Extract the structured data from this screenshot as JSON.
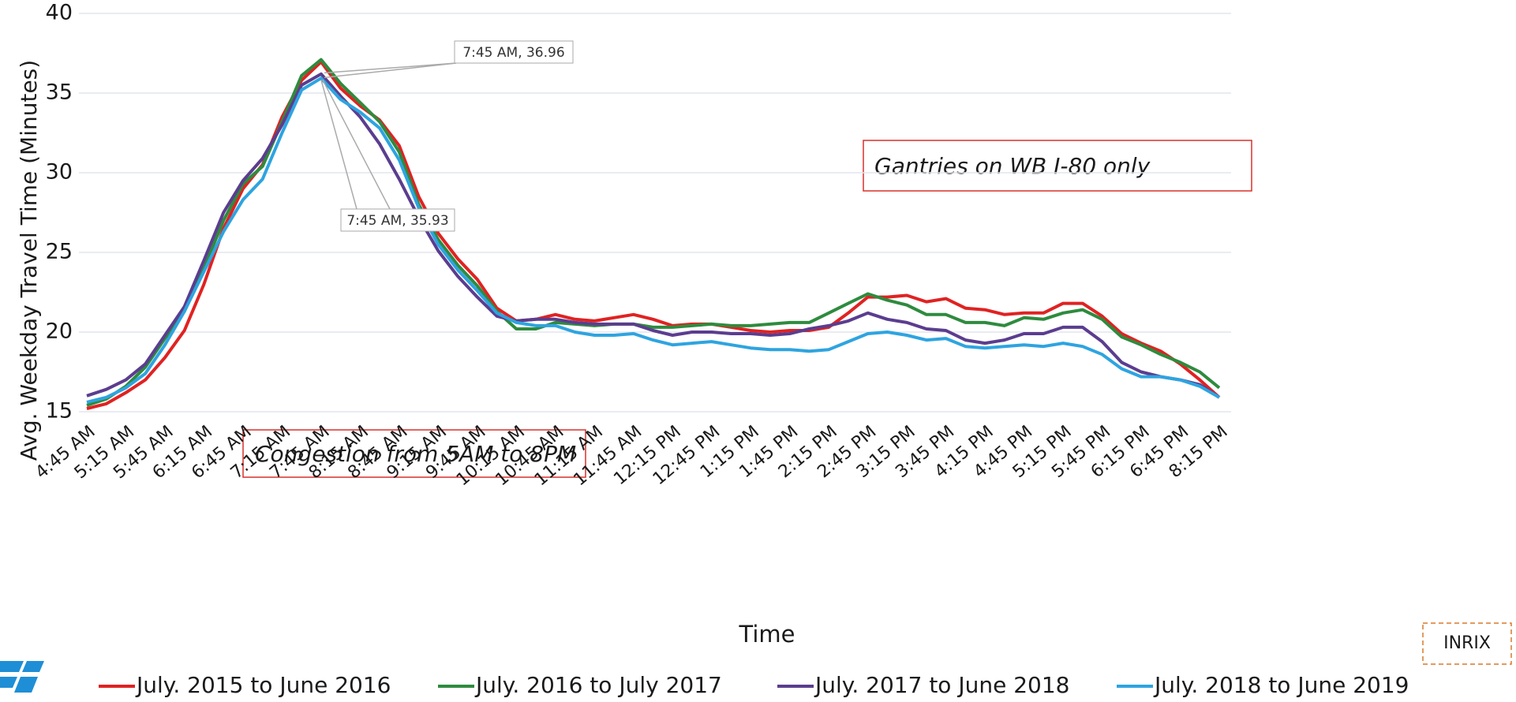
{
  "chart_data": {
    "type": "line",
    "y_label": "Avg. Weekday Travel Time (Minutes)",
    "x_label": "Time",
    "ylim": [
      15,
      40
    ],
    "yticks": [
      15,
      20,
      25,
      30,
      35,
      40
    ],
    "grid": true,
    "categories": [
      "4:45 AM",
      null,
      "5:15 AM",
      null,
      "5:45 AM",
      null,
      "6:15 AM",
      null,
      "6:45 AM",
      null,
      "7:15 AM",
      null,
      "7:45 AM",
      null,
      "8:15 AM",
      null,
      "8:45 AM",
      null,
      "9:15 AM",
      null,
      "9:45 AM",
      null,
      "10:15 AM",
      null,
      "10:45 AM",
      null,
      "11:15 AM",
      null,
      "11:45 AM",
      null,
      "12:15 PM",
      null,
      "12:45 PM",
      null,
      "1:15 PM",
      null,
      "1:45 PM",
      null,
      "2:15 PM",
      null,
      "2:45 PM",
      null,
      "3:15 PM",
      null,
      "3:45 PM",
      null,
      "4:15 PM",
      null,
      "4:45 PM",
      null,
      "5:15 PM",
      null,
      "5:45 PM",
      null,
      "6:15 PM",
      null,
      "6:45 PM",
      null,
      "8:15 PM"
    ],
    "series": [
      {
        "name": "July. 2015 to June 2016",
        "color": "#e02222",
        "values": [
          15.2,
          15.5,
          16.2,
          17.0,
          18.4,
          20.1,
          23.0,
          26.5,
          29.0,
          30.5,
          33.5,
          35.8,
          36.96,
          35.3,
          34.2,
          33.3,
          31.7,
          28.5,
          26.2,
          24.6,
          23.3,
          21.5,
          20.7,
          20.8,
          21.1,
          20.8,
          20.7,
          20.9,
          21.1,
          20.8,
          20.4,
          20.5,
          20.5,
          20.3,
          20.1,
          20.0,
          20.1,
          20.1,
          20.3,
          21.2,
          22.2,
          22.2,
          22.3,
          21.9,
          22.1,
          21.5,
          21.4,
          21.1,
          21.2,
          21.2,
          21.8,
          21.8,
          21.0,
          19.9,
          19.3,
          18.8,
          18.0,
          17.0,
          15.9
        ]
      },
      {
        "name": "July. 2016 to July 2017",
        "color": "#2e8b3e",
        "values": [
          15.4,
          15.8,
          16.6,
          17.8,
          19.6,
          21.3,
          24.0,
          27.0,
          29.3,
          30.4,
          33.2,
          36.1,
          37.1,
          35.6,
          34.4,
          33.2,
          31.3,
          28.0,
          25.8,
          24.2,
          22.9,
          21.3,
          20.2,
          20.2,
          20.6,
          20.5,
          20.4,
          20.5,
          20.5,
          20.3,
          20.3,
          20.4,
          20.5,
          20.4,
          20.4,
          20.5,
          20.6,
          20.6,
          21.2,
          21.8,
          22.4,
          22.0,
          21.7,
          21.1,
          21.1,
          20.6,
          20.6,
          20.4,
          20.9,
          20.8,
          21.2,
          21.4,
          20.8,
          19.7,
          19.2,
          18.6,
          18.1,
          17.5,
          16.5
        ]
      },
      {
        "name": "July. 2017 to June 2018",
        "color": "#5b3d8f",
        "values": [
          16.0,
          16.4,
          17.0,
          18.0,
          19.8,
          21.6,
          24.5,
          27.5,
          29.5,
          30.9,
          33.0,
          35.5,
          36.2,
          34.8,
          33.5,
          31.8,
          29.6,
          27.2,
          25.1,
          23.5,
          22.2,
          21.0,
          20.7,
          20.8,
          20.8,
          20.6,
          20.5,
          20.5,
          20.5,
          20.1,
          19.8,
          20.0,
          20.0,
          19.9,
          19.9,
          19.8,
          19.9,
          20.2,
          20.4,
          20.7,
          21.2,
          20.8,
          20.6,
          20.2,
          20.1,
          19.5,
          19.3,
          19.5,
          19.9,
          19.9,
          20.3,
          20.3,
          19.4,
          18.1,
          17.5,
          17.2,
          17.0,
          16.7,
          15.9
        ]
      },
      {
        "name": "July. 2018 to June 2019",
        "color": "#2ea4e0",
        "values": [
          15.6,
          15.9,
          16.5,
          17.4,
          19.2,
          21.3,
          23.8,
          26.3,
          28.3,
          29.6,
          32.5,
          35.2,
          35.93,
          34.6,
          33.8,
          32.8,
          30.8,
          27.8,
          25.5,
          23.9,
          22.6,
          21.2,
          20.6,
          20.4,
          20.4,
          20.0,
          19.8,
          19.8,
          19.9,
          19.5,
          19.2,
          19.3,
          19.4,
          19.2,
          19.0,
          18.9,
          18.9,
          18.8,
          18.9,
          19.4,
          19.9,
          20.0,
          19.8,
          19.5,
          19.6,
          19.1,
          19.0,
          19.1,
          19.2,
          19.1,
          19.3,
          19.1,
          18.6,
          17.7,
          17.2,
          17.2,
          17.0,
          16.6,
          15.9
        ]
      }
    ],
    "annotations": [
      "7:45 AM, 36.96",
      "7:45 AM, 35.93",
      "Gantries on WB I-80 only",
      "Congestion from 5AM to 8PM"
    ],
    "source": "INRIX"
  }
}
